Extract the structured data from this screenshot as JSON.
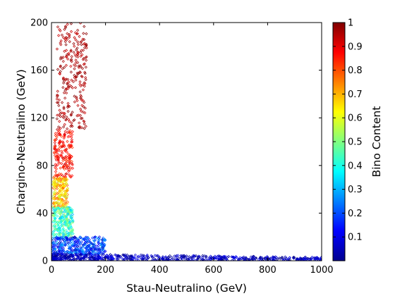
{
  "chart_data": {
    "type": "scatter",
    "title": "",
    "xlabel": "Stau-Neutralino (GeV)",
    "ylabel": "Chargino-Neutralino (GeV)",
    "xlim": [
      0,
      1000
    ],
    "ylim": [
      0,
      200
    ],
    "x_ticks": [
      "0",
      "200",
      "400",
      "600",
      "800",
      "1000"
    ],
    "y_ticks": [
      "0",
      "40",
      "80",
      "120",
      "160",
      "200"
    ],
    "grid": false,
    "marker": "small diamond",
    "colorbar": {
      "label": "Bino Content",
      "colormap": "jet",
      "range": [
        0,
        1
      ],
      "ticks": [
        "0.1",
        "0.2",
        "0.3",
        "0.4",
        "0.5",
        "0.6",
        "0.7",
        "0.8",
        "0.9",
        "1"
      ]
    },
    "series": [
      {
        "color_by": "bino_content",
        "regions": [
          {
            "x_range": [
              20,
              130
            ],
            "y_range": [
              110,
              200
            ],
            "bino_content": [
              0.92,
              1.0
            ]
          },
          {
            "x_range": [
              10,
              80
            ],
            "y_range": [
              70,
              110
            ],
            "bino_content": [
              0.82,
              0.92
            ]
          },
          {
            "x_range": [
              5,
              60
            ],
            "y_range": [
              45,
              70
            ],
            "bino_content": [
              0.55,
              0.82
            ]
          },
          {
            "x_range": [
              5,
              80
            ],
            "y_range": [
              20,
              45
            ],
            "bino_content": [
              0.3,
              0.55
            ]
          },
          {
            "x_range": [
              0,
              200
            ],
            "y_range": [
              5,
              20
            ],
            "bino_content": [
              0.05,
              0.3
            ]
          },
          {
            "x_range": [
              0,
              1000
            ],
            "y_range": [
              0,
              6
            ],
            "bino_content": [
              0.0,
              0.12
            ]
          }
        ]
      }
    ]
  }
}
